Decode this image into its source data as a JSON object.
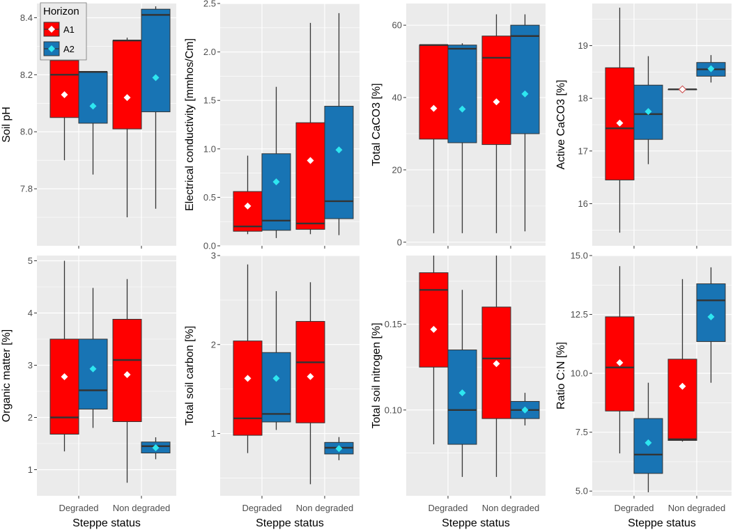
{
  "colors": {
    "A1": "#ff0000",
    "A2": "#1874b4",
    "panel_bg": "#ebebeb",
    "grid": "#ffffff",
    "mean_A1": "#ffffff",
    "mean_A2": "#2ee6f0",
    "whisker": "#333333"
  },
  "legend": {
    "title": "Horizon",
    "items": [
      "A1",
      "A2"
    ]
  },
  "x_axis_title": "Steppe status",
  "chart_data": [
    {
      "type": "box",
      "ylabel": "Soil pH",
      "categories": [
        "Degraded",
        "Non degraded"
      ],
      "ylim": [
        7.6,
        8.45
      ],
      "yticks": [
        7.8,
        8.0,
        8.2,
        8.4
      ],
      "tick_labels": [
        "7.8",
        "8.0",
        "8.2",
        "8.4"
      ],
      "series": [
        {
          "name": "A1",
          "boxes": [
            {
              "min": 7.9,
              "q1": 8.05,
              "median": 8.2,
              "q3": 8.25,
              "max": 8.25,
              "mean": 8.13
            },
            {
              "min": 7.7,
              "q1": 8.01,
              "median": 8.32,
              "q3": 8.32,
              "max": 8.33,
              "mean": 8.12
            }
          ]
        },
        {
          "name": "A2",
          "boxes": [
            {
              "min": 7.85,
              "q1": 8.03,
              "median": 8.21,
              "q3": 8.21,
              "max": 8.21,
              "mean": 8.09
            },
            {
              "min": 7.73,
              "q1": 8.07,
              "median": 8.41,
              "q3": 8.43,
              "max": 8.44,
              "mean": 8.19
            }
          ]
        }
      ]
    },
    {
      "type": "box",
      "ylabel": "Electrical conductivity [mmhos/Cm]",
      "categories": [
        "Degraded",
        "Non degraded"
      ],
      "ylim": [
        0,
        2.5
      ],
      "yticks": [
        0,
        0.5,
        1,
        1.5,
        2,
        2.5
      ],
      "tick_labels": [
        "0.0",
        "0.5",
        "1.0",
        "1.5",
        "2.0",
        "2.5"
      ],
      "series": [
        {
          "name": "A1",
          "boxes": [
            {
              "min": 0.12,
              "q1": 0.15,
              "median": 0.2,
              "q3": 0.56,
              "max": 0.93,
              "mean": 0.41
            },
            {
              "min": 0.12,
              "q1": 0.17,
              "median": 0.23,
              "q3": 1.27,
              "max": 2.3,
              "mean": 0.88
            }
          ]
        },
        {
          "name": "A2",
          "boxes": [
            {
              "min": 0.08,
              "q1": 0.16,
              "median": 0.26,
              "q3": 0.95,
              "max": 1.64,
              "mean": 0.66
            },
            {
              "min": 0.11,
              "q1": 0.28,
              "median": 0.46,
              "q3": 1.44,
              "max": 2.4,
              "mean": 0.99
            }
          ]
        }
      ]
    },
    {
      "type": "box",
      "ylabel": "Total CaCO3 [%]",
      "categories": [
        "Degraded",
        "Non degraded"
      ],
      "ylim": [
        -1,
        66
      ],
      "yticks": [
        0,
        20,
        40,
        60
      ],
      "tick_labels": [
        "0",
        "20",
        "40",
        "60"
      ],
      "series": [
        {
          "name": "A1",
          "boxes": [
            {
              "min": 2.5,
              "q1": 28.5,
              "median": 54.5,
              "q3": 54.5,
              "max": 54.5,
              "mean": 37
            },
            {
              "min": 2.5,
              "q1": 27,
              "median": 51,
              "q3": 57,
              "max": 63,
              "mean": 38.8
            }
          ]
        },
        {
          "name": "A2",
          "boxes": [
            {
              "min": 2.5,
              "q1": 27.5,
              "median": 53.5,
              "q3": 54.5,
              "max": 55,
              "mean": 36.8
            },
            {
              "min": 3,
              "q1": 30,
              "median": 57,
              "q3": 60,
              "max": 63,
              "mean": 41
            }
          ]
        }
      ]
    },
    {
      "type": "box",
      "ylabel": "Active CaCO3 [%]",
      "categories": [
        "Degraded",
        "Non degraded"
      ],
      "ylim": [
        15.2,
        19.8
      ],
      "yticks": [
        16,
        17,
        18,
        19
      ],
      "tick_labels": [
        "16",
        "17",
        "18",
        "19"
      ],
      "series": [
        {
          "name": "A1",
          "boxes": [
            {
              "min": 15.45,
              "q1": 16.45,
              "median": 17.43,
              "q3": 18.58,
              "max": 19.72,
              "mean": 17.53
            },
            {
              "min": 18.17,
              "q1": 18.17,
              "median": 18.17,
              "q3": 18.17,
              "max": 18.17,
              "mean": 18.17
            }
          ]
        },
        {
          "name": "A2",
          "boxes": [
            {
              "min": 16.75,
              "q1": 17.22,
              "median": 17.7,
              "q3": 18.25,
              "max": 18.8,
              "mean": 17.75
            },
            {
              "min": 18.3,
              "q1": 18.42,
              "median": 18.55,
              "q3": 18.68,
              "max": 18.82,
              "mean": 18.56
            }
          ]
        }
      ]
    },
    {
      "type": "box",
      "ylabel": "Organic matter [%]",
      "categories": [
        "Degraded",
        "Non degraded"
      ],
      "ylim": [
        0.5,
        5.1
      ],
      "yticks": [
        1,
        2,
        3,
        4,
        5
      ],
      "tick_labels": [
        "1",
        "2",
        "3",
        "4",
        "5"
      ],
      "series": [
        {
          "name": "A1",
          "boxes": [
            {
              "min": 1.35,
              "q1": 1.68,
              "median": 2.0,
              "q3": 3.5,
              "max": 5.0,
              "mean": 2.78
            },
            {
              "min": 0.75,
              "q1": 1.92,
              "median": 3.1,
              "q3": 3.88,
              "max": 4.65,
              "mean": 2.82
            }
          ]
        },
        {
          "name": "A2",
          "boxes": [
            {
              "min": 1.8,
              "q1": 2.16,
              "median": 2.52,
              "q3": 3.5,
              "max": 4.48,
              "mean": 2.93
            },
            {
              "min": 1.2,
              "q1": 1.32,
              "median": 1.45,
              "q3": 1.53,
              "max": 1.62,
              "mean": 1.42
            }
          ]
        }
      ]
    },
    {
      "type": "box",
      "ylabel": "Total soil carbon [%]",
      "categories": [
        "Degraded",
        "Non degraded"
      ],
      "ylim": [
        0.3,
        3.0
      ],
      "yticks": [
        1,
        2,
        3
      ],
      "tick_labels": [
        "1",
        "2",
        "3"
      ],
      "series": [
        {
          "name": "A1",
          "boxes": [
            {
              "min": 0.78,
              "q1": 0.98,
              "median": 1.17,
              "q3": 2.04,
              "max": 2.9,
              "mean": 1.62
            },
            {
              "min": 0.43,
              "q1": 1.12,
              "median": 1.8,
              "q3": 2.26,
              "max": 2.7,
              "mean": 1.64
            }
          ]
        },
        {
          "name": "A2",
          "boxes": [
            {
              "min": 1.04,
              "q1": 1.13,
              "median": 1.22,
              "q3": 1.91,
              "max": 2.6,
              "mean": 1.62
            },
            {
              "min": 0.7,
              "q1": 0.77,
              "median": 0.84,
              "q3": 0.9,
              "max": 0.96,
              "mean": 0.83
            }
          ]
        }
      ]
    },
    {
      "type": "box",
      "ylabel": "Total soil nitrogen [%]",
      "categories": [
        "Degraded",
        "Non degraded"
      ],
      "ylim": [
        0.05,
        0.19
      ],
      "yticks": [
        0.1,
        0.15
      ],
      "tick_labels": [
        "0.10",
        "0.15"
      ],
      "series": [
        {
          "name": "A1",
          "boxes": [
            {
              "min": 0.08,
              "q1": 0.125,
              "median": 0.17,
              "q3": 0.18,
              "max": 0.19,
              "mean": 0.147
            },
            {
              "min": 0.061,
              "q1": 0.095,
              "median": 0.13,
              "q3": 0.16,
              "max": 0.19,
              "mean": 0.127
            }
          ]
        },
        {
          "name": "A2",
          "boxes": [
            {
              "min": 0.061,
              "q1": 0.08,
              "median": 0.1,
              "q3": 0.135,
              "max": 0.17,
              "mean": 0.11
            },
            {
              "min": 0.091,
              "q1": 0.095,
              "median": 0.1,
              "q3": 0.105,
              "max": 0.11,
              "mean": 0.1
            }
          ]
        }
      ]
    },
    {
      "type": "box",
      "ylabel": "Ratio C:N [%]",
      "categories": [
        "Degraded",
        "Non degraded"
      ],
      "ylim": [
        4.8,
        15.0
      ],
      "yticks": [
        5,
        7.5,
        10,
        12.5,
        15
      ],
      "tick_labels": [
        "5.0",
        "7.5",
        "10.0",
        "12.5",
        "15.0"
      ],
      "series": [
        {
          "name": "A1",
          "boxes": [
            {
              "min": 6.6,
              "q1": 8.4,
              "median": 10.25,
              "q3": 12.4,
              "max": 14.55,
              "mean": 10.45
            },
            {
              "min": 7.1,
              "q1": 7.15,
              "median": 7.2,
              "q3": 10.6,
              "max": 14.0,
              "mean": 9.45
            }
          ]
        },
        {
          "name": "A2",
          "boxes": [
            {
              "min": 4.95,
              "q1": 5.75,
              "median": 6.55,
              "q3": 8.08,
              "max": 9.6,
              "mean": 7.05
            },
            {
              "min": 9.6,
              "q1": 11.35,
              "median": 13.1,
              "q3": 13.8,
              "max": 14.5,
              "mean": 12.4
            }
          ]
        }
      ]
    }
  ]
}
